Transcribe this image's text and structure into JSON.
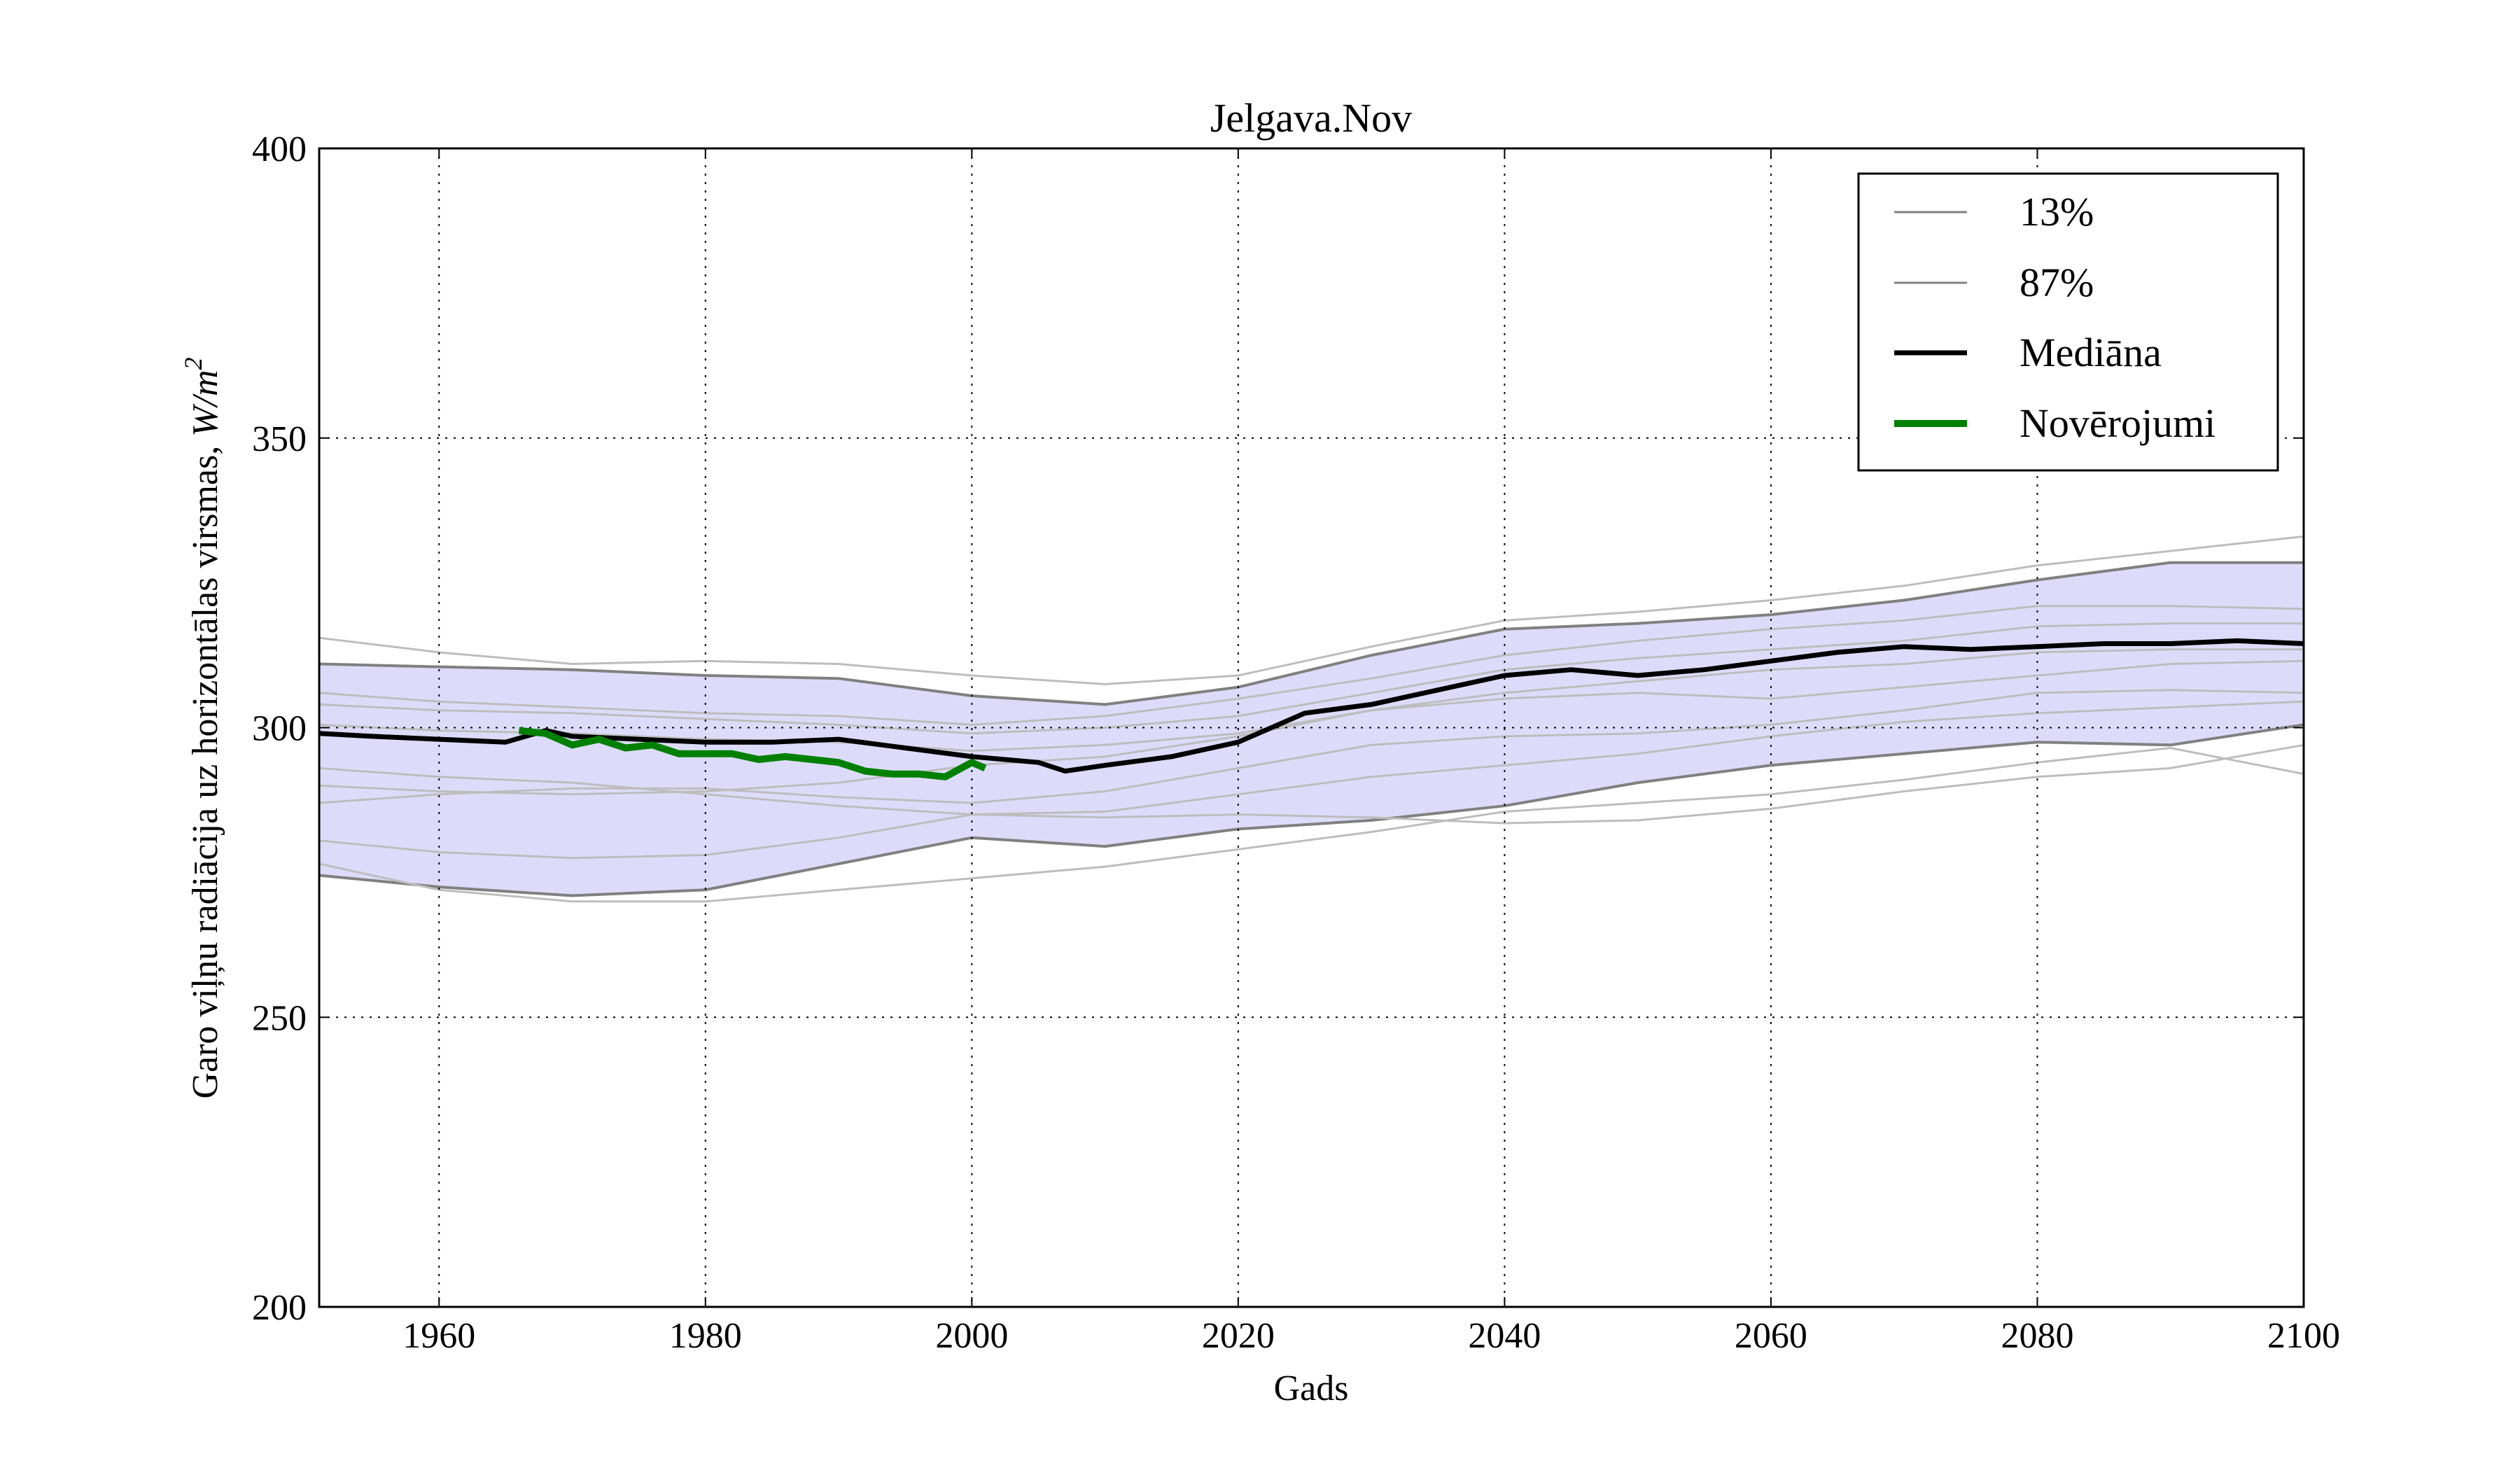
{
  "chart_data": {
    "type": "line",
    "title": "Jelgava.Nov",
    "xlabel": "Gads",
    "ylabel_text": "Garo viļņu radiācija uz horizontālas virsmas, ",
    "ylabel_unit_w": "W/m",
    "ylabel_unit_exp": "2",
    "xlim": [
      1951,
      2100
    ],
    "ylim": [
      200,
      400
    ],
    "x_ticks": [
      1960,
      1980,
      2000,
      2020,
      2040,
      2060,
      2080,
      2100
    ],
    "y_ticks": [
      200,
      250,
      300,
      350,
      400
    ],
    "grid": true,
    "legend_position": "top-right",
    "legend": [
      "13%",
      "87%",
      "Mediāna",
      "Novērojumi"
    ],
    "colors": {
      "band_fill": "#dcdcfa",
      "band_edge": "#808080",
      "ensemble": "#bdbdbd",
      "median": "#000000",
      "observations": "#008000"
    },
    "band": {
      "x": [
        1951,
        1960,
        1970,
        1980,
        1990,
        2000,
        2010,
        2020,
        2030,
        2040,
        2050,
        2060,
        2070,
        2080,
        2090,
        2100
      ],
      "lower": [
        274.5,
        272.5,
        271,
        272,
        276.5,
        281,
        279.5,
        282.5,
        284,
        286.5,
        290.5,
        293.5,
        295.5,
        297.5,
        297,
        300.5
      ],
      "upper": [
        311,
        310.5,
        310,
        309,
        308.5,
        305.5,
        304,
        307,
        312.5,
        317,
        318,
        319.5,
        322,
        325.5,
        328.5,
        328.5
      ]
    },
    "ensemble": [
      {
        "x": [
          1951,
          1960,
          1970,
          1980,
          1990,
          2000,
          2010,
          2020,
          2030,
          2040,
          2050,
          2060,
          2070,
          2080,
          2090,
          2100
        ],
        "y": [
          315.5,
          313,
          311,
          311.5,
          311,
          309,
          307.5,
          309,
          314,
          318.5,
          320,
          322,
          324.5,
          328,
          330.5,
          333
        ]
      },
      {
        "x": [
          1951,
          1960,
          1970,
          1980,
          1990,
          2000,
          2010,
          2020,
          2030,
          2040,
          2050,
          2060,
          2070,
          2080,
          2090,
          2100
        ],
        "y": [
          306,
          304.5,
          303.5,
          302.5,
          302,
          300.5,
          302,
          305,
          308.5,
          312.5,
          315,
          317,
          318.5,
          321,
          321,
          320.5
        ]
      },
      {
        "x": [
          1951,
          1960,
          1970,
          1980,
          1990,
          2000,
          2010,
          2020,
          2030,
          2040,
          2050,
          2060,
          2070,
          2080,
          2090,
          2100
        ],
        "y": [
          304,
          303,
          302.5,
          301.5,
          300.5,
          299,
          300,
          302,
          306,
          310,
          312,
          313.5,
          315,
          317.5,
          318,
          318
        ]
      },
      {
        "x": [
          1951,
          1960,
          1970,
          1980,
          1990,
          2000,
          2010,
          2020,
          2030,
          2040,
          2050,
          2060,
          2070,
          2080,
          2090,
          2100
        ],
        "y": [
          300.5,
          299.5,
          299,
          298,
          297.5,
          296,
          297,
          299,
          303,
          306,
          308,
          310,
          311,
          313,
          313.5,
          313.5
        ]
      },
      {
        "x": [
          1951,
          1960,
          1970,
          1980,
          1990,
          2000,
          2010,
          2020,
          2030,
          2040,
          2050,
          2060,
          2070,
          2080,
          2090,
          2100
        ],
        "y": [
          290,
          289,
          288.5,
          289,
          290.5,
          293.5,
          295,
          298.5,
          303,
          305,
          306,
          305,
          307,
          309,
          311,
          311.5
        ]
      },
      {
        "x": [
          1951,
          1960,
          1970,
          1980,
          1990,
          2000,
          2010,
          2020,
          2030,
          2040,
          2050,
          2060,
          2070,
          2080,
          2090,
          2100
        ],
        "y": [
          287,
          288.5,
          289.5,
          289.5,
          288,
          287,
          289,
          293,
          297,
          298.5,
          299,
          300.5,
          303,
          306,
          306.5,
          306
        ]
      },
      {
        "x": [
          1951,
          1960,
          1970,
          1980,
          1990,
          2000,
          2010,
          2020,
          2030,
          2040,
          2050,
          2060,
          2070,
          2080,
          2090,
          2100
        ],
        "y": [
          280.5,
          278.5,
          277.5,
          278,
          281,
          285,
          285.5,
          288.5,
          291.5,
          293.5,
          295.5,
          298.5,
          301,
          302.5,
          303.5,
          304.5
        ]
      },
      {
        "x": [
          1951,
          1960,
          1970,
          1980,
          1990,
          2000,
          2010,
          2020,
          2030,
          2040,
          2050,
          2060,
          2070,
          2080,
          2090,
          2100
        ],
        "y": [
          276.5,
          272,
          270,
          270,
          272,
          274,
          276,
          279,
          282,
          285.5,
          287,
          288.5,
          291,
          294,
          296.5,
          292
        ]
      },
      {
        "x": [
          1951,
          1960,
          1970,
          1980,
          1990,
          2000,
          2010,
          2020,
          2030,
          2040,
          2050,
          2060,
          2070,
          2080,
          2090,
          2100
        ],
        "y": [
          293,
          291.5,
          290.5,
          288.5,
          286.5,
          285,
          284.5,
          285,
          284.5,
          283.5,
          284,
          286,
          289,
          291.5,
          293,
          297
        ]
      }
    ],
    "median": {
      "x": [
        1951,
        1955,
        1960,
        1965,
        1968,
        1970,
        1975,
        1980,
        1985,
        1990,
        1995,
        2000,
        2005,
        2007,
        2010,
        2015,
        2020,
        2025,
        2030,
        2035,
        2040,
        2045,
        2050,
        2055,
        2060,
        2065,
        2070,
        2075,
        2080,
        2085,
        2090,
        2095,
        2100
      ],
      "y": [
        299,
        298.5,
        298,
        297.5,
        299.5,
        298.5,
        298,
        297.5,
        297.5,
        298,
        296.5,
        295,
        294,
        292.5,
        293.5,
        295,
        297.5,
        302.5,
        304,
        306.5,
        309,
        310,
        309,
        310,
        311.5,
        313,
        314,
        313.5,
        314,
        314.5,
        314.5,
        315,
        314.5
      ]
    },
    "observations": {
      "x": [
        1966,
        1968,
        1970,
        1972,
        1974,
        1976,
        1978,
        1980,
        1982,
        1984,
        1986,
        1988,
        1990,
        1992,
        1994,
        1996,
        1998,
        2000,
        2001
      ],
      "y": [
        299.5,
        299,
        297,
        298,
        296.5,
        297,
        295.5,
        295.5,
        295.5,
        294.5,
        295,
        294.5,
        294,
        292.5,
        292,
        292,
        291.5,
        294,
        293
      ]
    }
  }
}
